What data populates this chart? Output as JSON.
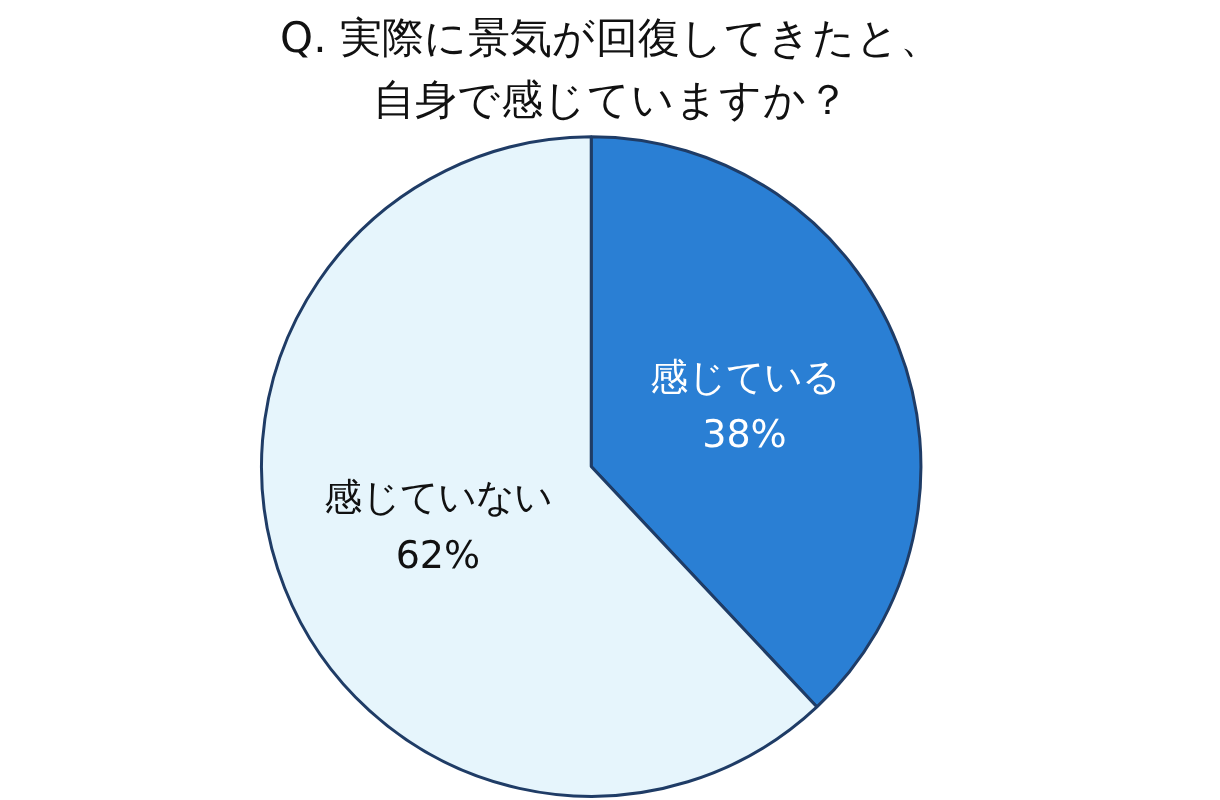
{
  "chart_data": {
    "type": "pie",
    "title": [
      "Q. 実際に景気が回復してきたと、",
      "自身で感じていますか？"
    ],
    "categories": [
      "感じている",
      "感じていない"
    ],
    "values": [
      38,
      62
    ],
    "value_labels": [
      "38%",
      "62%"
    ],
    "colors": [
      "#2a7fd4",
      "#e6f5fc"
    ]
  }
}
